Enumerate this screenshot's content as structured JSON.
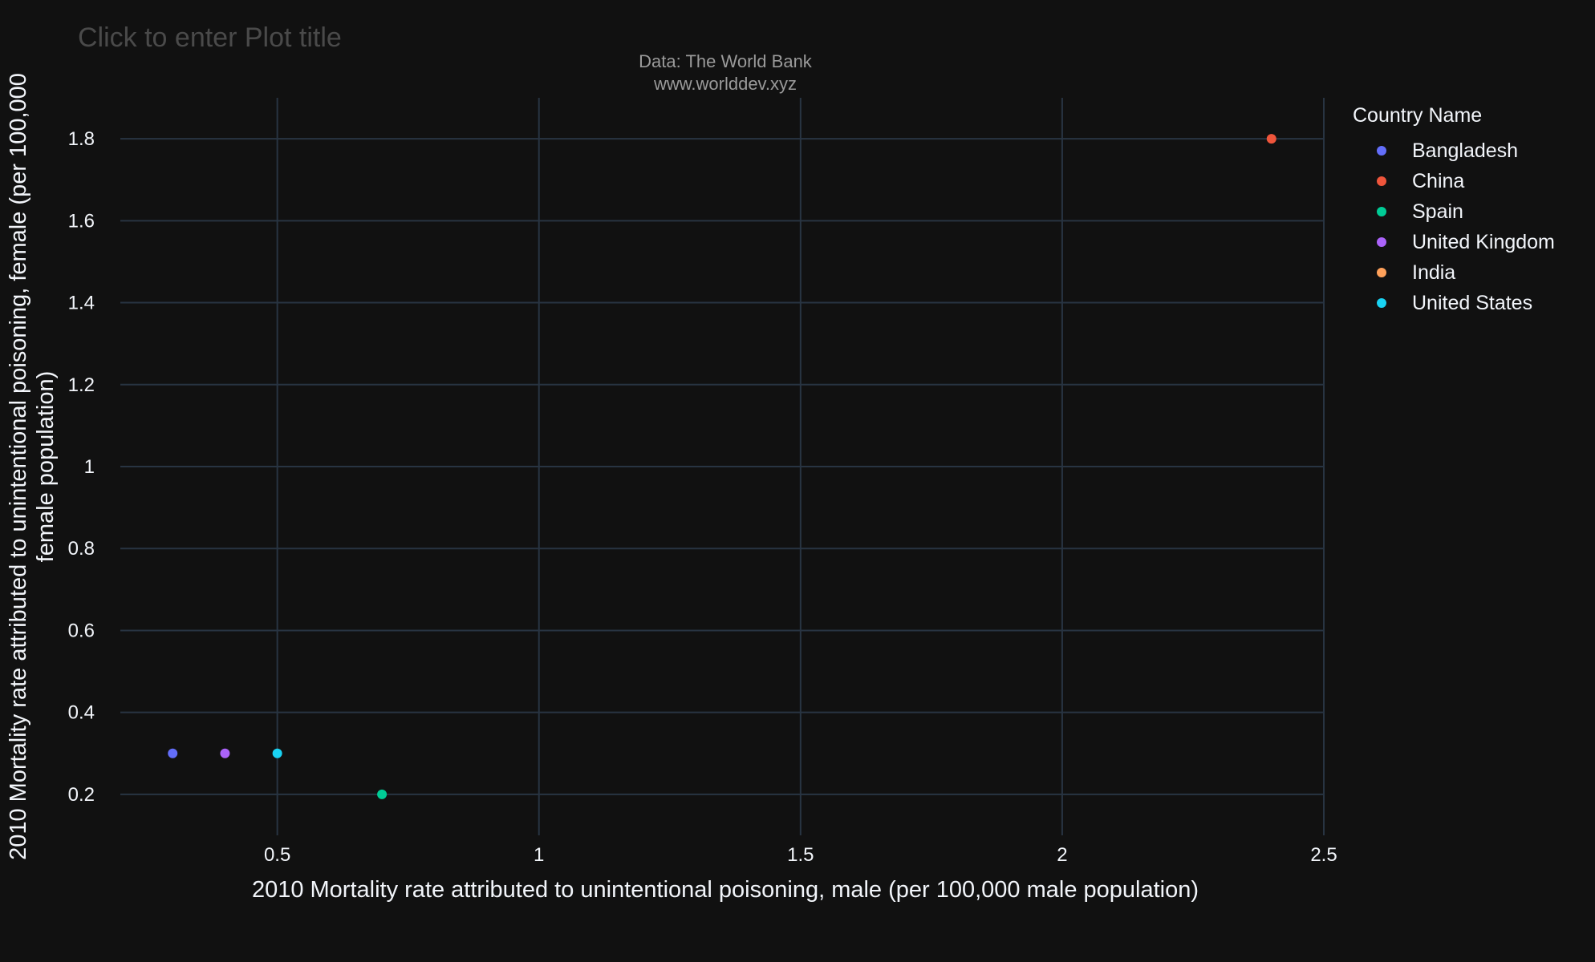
{
  "title_placeholder": "Click to enter Plot title",
  "subtitle_line1": "Data: The World Bank",
  "subtitle_line2": "www.worlddev.xyz",
  "legend": {
    "title": "Country Name"
  },
  "colors": {
    "background": "#111111",
    "grid": "#283442",
    "text": "#f2f5fa"
  },
  "chart_data": {
    "type": "scatter",
    "xlabel": "2010 Mortality rate attributed to unintentional poisoning, male (per 100,000 male population)",
    "ylabel": "2010 Mortality rate attributed to unintentional poisoning, female (per 100,000 female population)",
    "xlim": [
      0.2,
      2.5
    ],
    "ylim": [
      0.1,
      1.9
    ],
    "x_ticks": [
      0.5,
      1,
      1.5,
      2,
      2.5
    ],
    "y_ticks": [
      0.2,
      0.4,
      0.6,
      0.8,
      1,
      1.2,
      1.4,
      1.6,
      1.8
    ],
    "grid": true,
    "legend_position": "right",
    "series": [
      {
        "name": "Bangladesh",
        "color": "#636efa",
        "x": [
          0.3
        ],
        "y": [
          0.3
        ]
      },
      {
        "name": "China",
        "color": "#EF553B",
        "x": [
          2.4
        ],
        "y": [
          1.8
        ]
      },
      {
        "name": "Spain",
        "color": "#00cc96",
        "x": [
          0.7
        ],
        "y": [
          0.2
        ]
      },
      {
        "name": "United Kingdom",
        "color": "#ab63fa",
        "x": [
          0.4
        ],
        "y": [
          0.3
        ]
      },
      {
        "name": "India",
        "color": "#FFA15A",
        "x": [],
        "y": []
      },
      {
        "name": "United States",
        "color": "#19d3f3",
        "x": [
          0.5
        ],
        "y": [
          0.3
        ]
      }
    ]
  }
}
